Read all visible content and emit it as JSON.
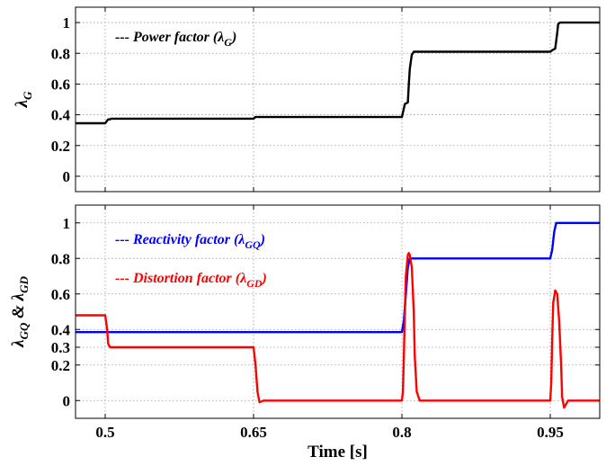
{
  "chart_data": [
    {
      "type": "line",
      "ylabel": "λ",
      "ylabel_sub": "G",
      "xlim": [
        0.47,
        1.0
      ],
      "ylim": [
        -0.1,
        1.1
      ],
      "yticks": [
        0,
        0.2,
        0.4,
        0.6,
        0.8,
        1
      ],
      "ytick_labels": [
        "0",
        "0.2",
        "0.4",
        "0.6",
        "0.8",
        "1"
      ],
      "xticks": [
        0.5,
        0.65,
        0.8,
        0.95
      ],
      "grid": true,
      "legend_position": "top-left",
      "series": [
        {
          "name": "Power factor (λ",
          "name_sub": "G",
          "name_end": ")",
          "color": "#000000",
          "points": [
            [
              0.47,
              0.345
            ],
            [
              0.5,
              0.345
            ],
            [
              0.503,
              0.37
            ],
            [
              0.505,
              0.37
            ],
            [
              0.506,
              0.375
            ],
            [
              0.65,
              0.375
            ],
            [
              0.652,
              0.385
            ],
            [
              0.8,
              0.385
            ],
            [
              0.803,
              0.47
            ],
            [
              0.806,
              0.48
            ],
            [
              0.807,
              0.6
            ],
            [
              0.808,
              0.7
            ],
            [
              0.81,
              0.79
            ],
            [
              0.812,
              0.81
            ],
            [
              0.95,
              0.81
            ],
            [
              0.952,
              0.82
            ],
            [
              0.955,
              0.83
            ],
            [
              0.957,
              0.93
            ],
            [
              0.958,
              0.99
            ],
            [
              0.96,
              1.0
            ],
            [
              1.0,
              1.0
            ]
          ]
        }
      ]
    },
    {
      "type": "line",
      "ylabel": "λ",
      "ylabel_sub1": "GQ",
      "ylabel_mid": " & λ",
      "ylabel_sub2": "GD",
      "xlabel": "Time [s]",
      "xlim": [
        0.47,
        1.0
      ],
      "ylim": [
        -0.1,
        1.1
      ],
      "yticks": [
        0,
        0.2,
        0.3,
        0.4,
        0.6,
        0.8,
        1
      ],
      "ytick_labels": [
        "0",
        "0.2",
        "0.3",
        "0.4",
        "0.6",
        "0.8",
        "1"
      ],
      "xticks": [
        0.5,
        0.65,
        0.8,
        0.95
      ],
      "xtick_labels": [
        "0.5",
        "0.65",
        "0.8",
        "0.95"
      ],
      "grid": true,
      "legend_position": "top-left",
      "series": [
        {
          "name": "Reactivity factor (λ",
          "name_sub": "GQ",
          "name_end": ")",
          "color": "#0000ff",
          "points": [
            [
              0.47,
              0.385
            ],
            [
              0.8,
              0.385
            ],
            [
              0.802,
              0.45
            ],
            [
              0.804,
              0.6
            ],
            [
              0.806,
              0.75
            ],
            [
              0.808,
              0.8
            ],
            [
              0.95,
              0.8
            ],
            [
              0.952,
              0.85
            ],
            [
              0.954,
              0.95
            ],
            [
              0.956,
              1.0
            ],
            [
              1.0,
              1.0
            ]
          ]
        },
        {
          "name": "Distortion factor (λ",
          "name_sub": "GD",
          "name_end": ")",
          "color": "#ff0000",
          "points": [
            [
              0.47,
              0.48
            ],
            [
              0.5,
              0.48
            ],
            [
              0.502,
              0.4
            ],
            [
              0.503,
              0.32
            ],
            [
              0.505,
              0.3
            ],
            [
              0.65,
              0.3
            ],
            [
              0.652,
              0.2
            ],
            [
              0.654,
              0.05
            ],
            [
              0.656,
              -0.01
            ],
            [
              0.66,
              0.0
            ],
            [
              0.8,
              0.0
            ],
            [
              0.801,
              0.05
            ],
            [
              0.802,
              0.25
            ],
            [
              0.803,
              0.5
            ],
            [
              0.804,
              0.7
            ],
            [
              0.806,
              0.82
            ],
            [
              0.807,
              0.83
            ],
            [
              0.808,
              0.82
            ],
            [
              0.81,
              0.75
            ],
            [
              0.812,
              0.5
            ],
            [
              0.813,
              0.25
            ],
            [
              0.815,
              0.05
            ],
            [
              0.818,
              0.0
            ],
            [
              0.82,
              0.0
            ],
            [
              0.95,
              0.0
            ],
            [
              0.951,
              0.1
            ],
            [
              0.952,
              0.35
            ],
            [
              0.953,
              0.55
            ],
            [
              0.955,
              0.62
            ],
            [
              0.957,
              0.6
            ],
            [
              0.959,
              0.45
            ],
            [
              0.961,
              0.2
            ],
            [
              0.962,
              0.02
            ],
            [
              0.964,
              -0.04
            ],
            [
              0.966,
              -0.02
            ],
            [
              0.968,
              0.0
            ],
            [
              1.0,
              0.0
            ]
          ]
        }
      ]
    }
  ]
}
